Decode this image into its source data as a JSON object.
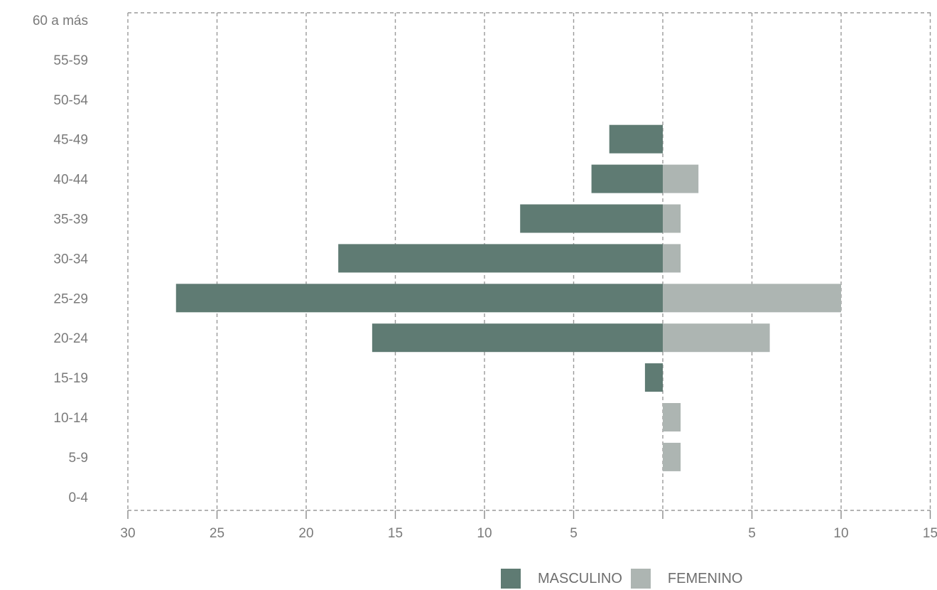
{
  "chart_data": {
    "type": "bar",
    "orientation": "horizontal",
    "layout": "population-pyramid",
    "categories": [
      "60 a más",
      "55-59",
      "50-54",
      "45-49",
      "40-44",
      "35-39",
      "30-34",
      "25-29",
      "20-24",
      "15-19",
      "10-14",
      "5-9",
      "0-4"
    ],
    "series": [
      {
        "name": "MASCULINO",
        "color": "#5f7b73",
        "values": [
          0,
          0,
          0,
          3,
          4,
          8,
          18.2,
          27.3,
          16.3,
          1,
          0,
          0,
          0
        ]
      },
      {
        "name": "FEMENINO",
        "color": "#adb5b2",
        "values": [
          0,
          0,
          0,
          0,
          2,
          1,
          1,
          10,
          6,
          0,
          1,
          1,
          0
        ]
      }
    ],
    "x_ticks_left": [
      "30",
      "25",
      "20",
      "15",
      "10",
      "5"
    ],
    "x_ticks_right": [
      "5",
      "10",
      "15"
    ],
    "xlim_left": [
      0,
      30
    ],
    "xlim_right": [
      0,
      15
    ],
    "grid": "dashed vertical",
    "legend_position": "bottom-right",
    "title": "",
    "xlabel": "",
    "ylabel": ""
  }
}
